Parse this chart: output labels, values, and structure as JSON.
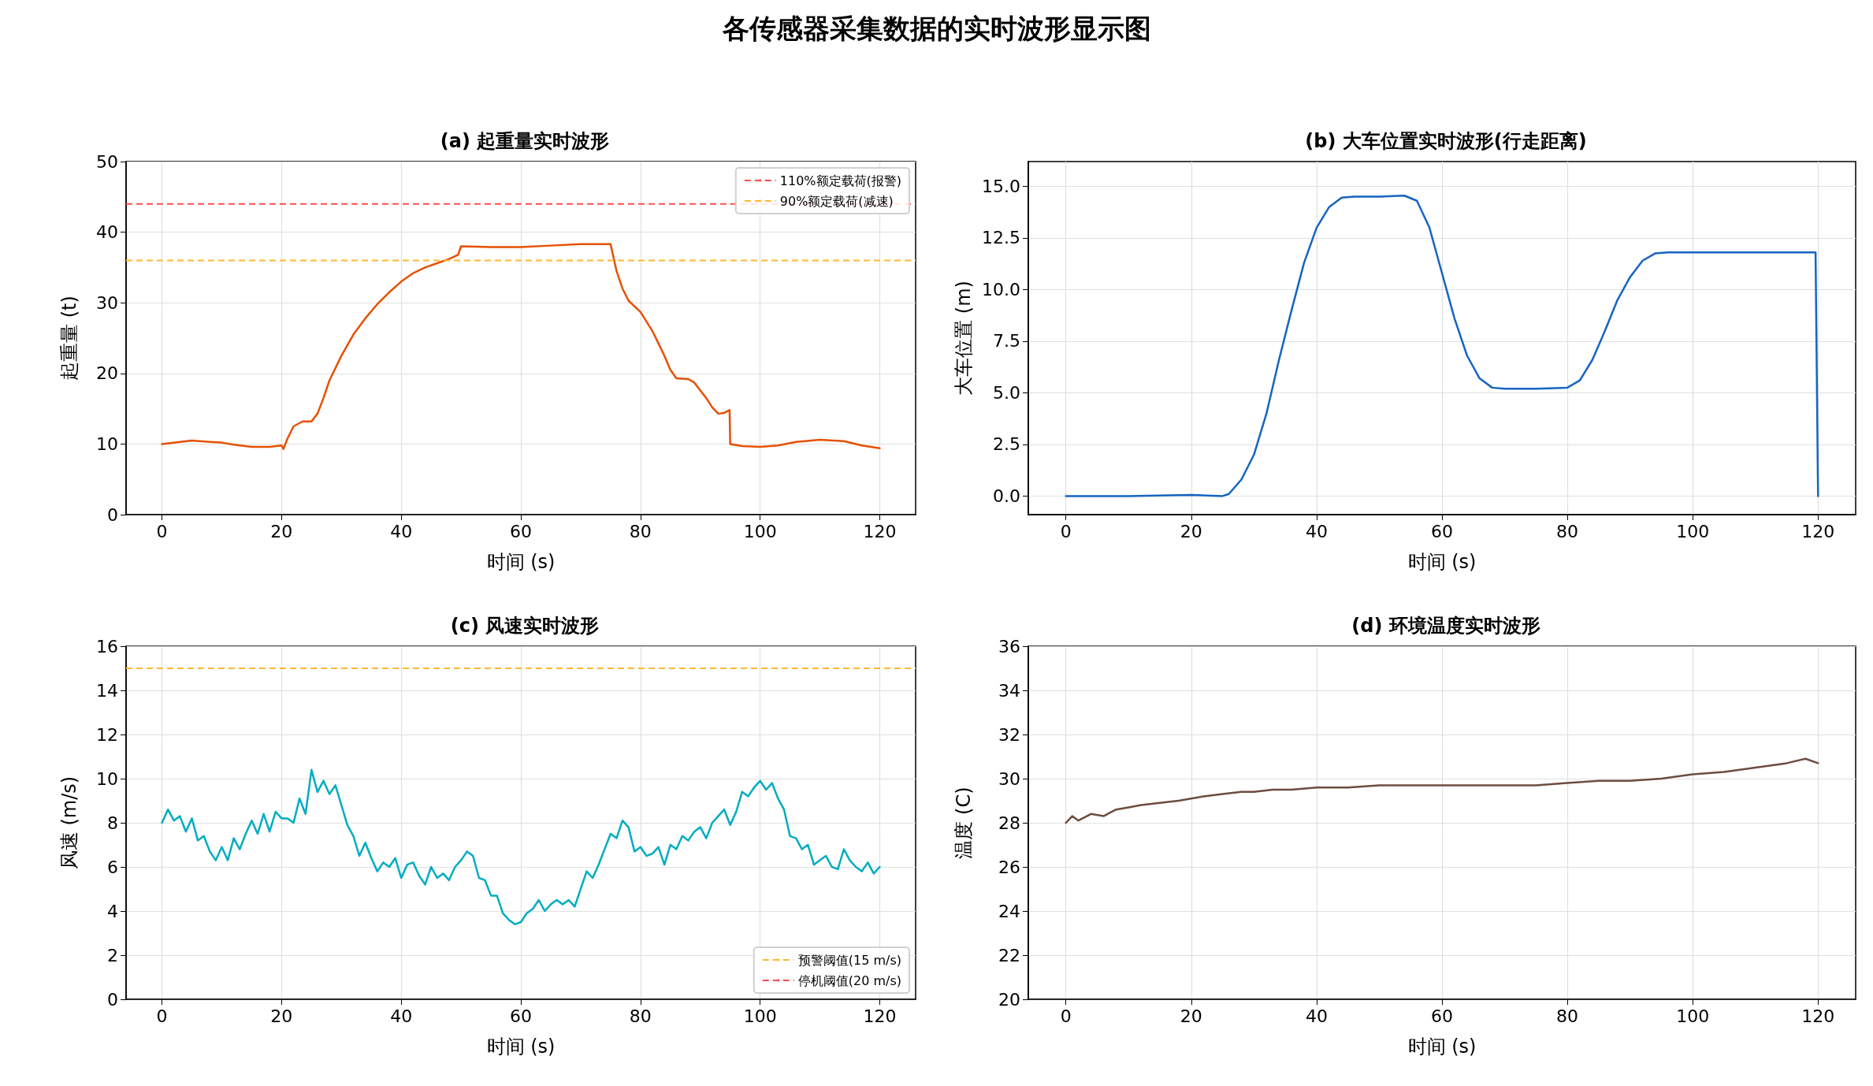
{
  "chart_data": [
    {
      "type": "line",
      "title": "(a) 起重量实时波形",
      "xlabel": "时间 (s)",
      "ylabel": "起重量 (t)",
      "annotations": [
        "各传感器采集数据的实时波形显示图"
      ],
      "grid": true,
      "legend": "top right",
      "xlim": [
        -6,
        126
      ],
      "xticks": [
        0,
        20,
        40,
        60,
        80,
        100,
        120
      ],
      "ylim": [
        0,
        50
      ],
      "yticks": [
        0,
        10,
        20,
        30,
        40,
        50
      ],
      "ref_lines": [
        {
          "axis": "y",
          "value": 44,
          "label": "110%额定载荷(报警)",
          "color": "#ff4d4d",
          "line_style": "dashed"
        },
        {
          "axis": "y",
          "value": 36,
          "label": "90%额定载荷(减速)",
          "color": "#ffb833",
          "line_style": "dashed"
        }
      ],
      "series": [
        {
          "color": "#e65100",
          "x": [
            0,
            3,
            5,
            8,
            10,
            12,
            15,
            18,
            20,
            20.3,
            21,
            22,
            23.5,
            25,
            26,
            27,
            28,
            30,
            32,
            34,
            36,
            38,
            40,
            42,
            44,
            46,
            48,
            49.5,
            50,
            55,
            60,
            65,
            70,
            74,
            75,
            76,
            77,
            78,
            80,
            82,
            84,
            85,
            86,
            88,
            89,
            91,
            92,
            93,
            94,
            94.9,
            95,
            97,
            100,
            103,
            106,
            110,
            114,
            117,
            120
          ],
          "values": [
            10,
            10.3,
            10.5,
            10.3,
            10.2,
            9.9,
            9.6,
            9.6,
            9.8,
            9.3,
            10.8,
            12.5,
            13.2,
            13.2,
            14.3,
            16.5,
            19,
            22.5,
            25.5,
            27.8,
            29.8,
            31.5,
            33,
            34.2,
            35,
            35.6,
            36.2,
            36.8,
            38,
            37.9,
            37.9,
            38.1,
            38.3,
            38.3,
            38.3,
            34.5,
            32,
            30.3,
            28.7,
            26,
            22.5,
            20.5,
            19.3,
            19.2,
            18.7,
            16.5,
            15.2,
            14.3,
            14.4,
            14.8,
            10,
            9.7,
            9.6,
            9.8,
            10.3,
            10.6,
            10.4,
            9.8,
            9.4
          ]
        }
      ]
    },
    {
      "type": "line",
      "title": "(b) 大车位置实时波形(行走距离)",
      "xlabel": "时间 (s)",
      "ylabel": "大车位置 (m)",
      "grid": true,
      "xlim": [
        -6,
        126
      ],
      "xticks": [
        0,
        20,
        40,
        60,
        80,
        100,
        120
      ],
      "ylim": [
        -0.9,
        16.2
      ],
      "yticks": [
        {
          "value": 0,
          "label": "0.0"
        },
        {
          "value": 2.5,
          "label": "2.5"
        },
        {
          "value": 5,
          "label": "5.0"
        },
        {
          "value": 7.5,
          "label": "7.5"
        },
        {
          "value": 10,
          "label": "10.0"
        },
        {
          "value": 12.5,
          "label": "12.5"
        },
        {
          "value": 15,
          "label": "15.0"
        }
      ],
      "series": [
        {
          "color": "#1565c0",
          "x": [
            0,
            10,
            20,
            25,
            26,
            28,
            30,
            32,
            34,
            36,
            38,
            40,
            42,
            44,
            46,
            50,
            54,
            56,
            58,
            60,
            62,
            64,
            66,
            68,
            70,
            75,
            80,
            82,
            84,
            86,
            88,
            90,
            92,
            94,
            96,
            100,
            105,
            110,
            115,
            119.6,
            120
          ],
          "values": [
            0,
            0,
            0.05,
            0,
            0.1,
            0.8,
            2,
            4,
            6.6,
            9,
            11.3,
            13,
            14,
            14.45,
            14.5,
            14.5,
            14.55,
            14.3,
            13,
            10.8,
            8.6,
            6.8,
            5.7,
            5.25,
            5.2,
            5.2,
            5.25,
            5.6,
            6.6,
            8,
            9.5,
            10.6,
            11.4,
            11.75,
            11.8,
            11.8,
            11.8,
            11.8,
            11.8,
            11.8,
            0
          ]
        }
      ]
    },
    {
      "type": "line",
      "title": "(c) 风速实时波形",
      "xlabel": "时间 (s)",
      "ylabel": "风速 (m/s)",
      "grid": true,
      "legend": "bottom right",
      "xlim": [
        -6,
        126
      ],
      "xticks": [
        0,
        20,
        40,
        60,
        80,
        100,
        120
      ],
      "ylim": [
        0,
        16
      ],
      "yticks": [
        0,
        2,
        4,
        6,
        8,
        10,
        12,
        14,
        16
      ],
      "ref_lines": [
        {
          "axis": "y",
          "value": 15,
          "label": "预警阈值(15 m/s)",
          "color": "#ffb833",
          "line_style": "dashed"
        },
        {
          "axis": "y",
          "value": null,
          "label": "停机阈值(20 m/s)",
          "color": "#ff4d4d",
          "line_style": "dashed"
        }
      ],
      "series": [
        {
          "color": "#00acc1",
          "x": [
            0,
            1,
            2,
            3,
            4,
            5,
            6,
            7,
            8,
            9,
            10,
            11,
            12,
            13,
            14,
            15,
            16,
            17,
            18,
            19,
            20,
            21,
            22,
            23,
            24,
            25,
            26,
            27,
            28,
            29,
            30,
            31,
            32,
            33,
            34,
            35,
            36,
            37,
            38,
            39,
            40,
            41,
            42,
            43,
            44,
            45,
            46,
            47,
            48,
            49,
            50,
            51,
            52,
            53,
            54,
            55,
            56,
            57,
            58,
            59,
            60,
            61,
            62,
            63,
            64,
            65,
            66,
            67,
            68,
            69,
            70,
            71,
            72,
            73,
            74,
            75,
            76,
            77,
            78,
            79,
            80,
            81,
            82,
            83,
            84,
            85,
            86,
            87,
            88,
            89,
            90,
            91,
            92,
            93,
            94,
            95,
            96,
            97,
            98,
            99,
            100,
            101,
            102,
            103,
            104,
            105,
            106,
            107,
            108,
            109,
            110,
            111,
            112,
            113,
            114,
            115,
            116,
            117,
            118,
            119,
            120
          ],
          "values": [
            8,
            8.6,
            8.1,
            8.3,
            7.6,
            8.2,
            7.2,
            7.4,
            6.7,
            6.3,
            6.9,
            6.3,
            7.3,
            6.8,
            7.5,
            8.1,
            7.5,
            8.4,
            7.6,
            8.5,
            8.2,
            8.2,
            8,
            9.1,
            8.4,
            10.4,
            9.4,
            9.9,
            9.3,
            9.7,
            8.8,
            7.9,
            7.4,
            6.5,
            7.1,
            6.4,
            5.8,
            6.2,
            6,
            6.4,
            5.5,
            6.1,
            6.2,
            5.6,
            5.2,
            6,
            5.5,
            5.7,
            5.4,
            6,
            6.3,
            6.7,
            6.5,
            5.5,
            5.4,
            4.7,
            4.7,
            3.9,
            3.6,
            3.4,
            3.5,
            3.9,
            4.1,
            4.5,
            4,
            4.3,
            4.5,
            4.3,
            4.5,
            4.2,
            5,
            5.8,
            5.5,
            6.1,
            6.8,
            7.5,
            7.3,
            8.1,
            7.8,
            6.7,
            6.9,
            6.5,
            6.6,
            6.9,
            6.1,
            7,
            6.8,
            7.4,
            7.2,
            7.6,
            7.8,
            7.3,
            8,
            8.3,
            8.6,
            7.9,
            8.5,
            9.4,
            9.2,
            9.6,
            9.9,
            9.5,
            9.8,
            9.1,
            8.6,
            7.4,
            7.3,
            6.8,
            7,
            6.1,
            6.3,
            6.5,
            6,
            5.9,
            6.8,
            6.3,
            6,
            5.8,
            6.2,
            5.7,
            6
          ]
        }
      ]
    },
    {
      "type": "line",
      "title": "(d) 环境温度实时波形",
      "xlabel": "时间 (s)",
      "ylabel": "温度 (C)",
      "grid": true,
      "xlim": [
        -6,
        126
      ],
      "xticks": [
        0,
        20,
        40,
        60,
        80,
        100,
        120
      ],
      "ylim": [
        20,
        36
      ],
      "yticks": [
        20,
        22,
        24,
        26,
        28,
        30,
        32,
        34,
        36
      ],
      "series": [
        {
          "color": "#6d4c41",
          "x": [
            0,
            1,
            2,
            4,
            6,
            8,
            10,
            12,
            15,
            18,
            20,
            22,
            25,
            28,
            30,
            33,
            36,
            40,
            45,
            50,
            55,
            60,
            65,
            70,
            75,
            80,
            85,
            90,
            95,
            100,
            105,
            110,
            115,
            118,
            120
          ],
          "values": [
            28,
            28.3,
            28.1,
            28.4,
            28.3,
            28.6,
            28.7,
            28.8,
            28.9,
            29,
            29.1,
            29.2,
            29.3,
            29.4,
            29.4,
            29.5,
            29.5,
            29.6,
            29.6,
            29.7,
            29.7,
            29.7,
            29.7,
            29.7,
            29.7,
            29.8,
            29.9,
            29.9,
            30,
            30.2,
            30.3,
            30.5,
            30.7,
            30.9,
            30.7
          ]
        }
      ]
    }
  ]
}
